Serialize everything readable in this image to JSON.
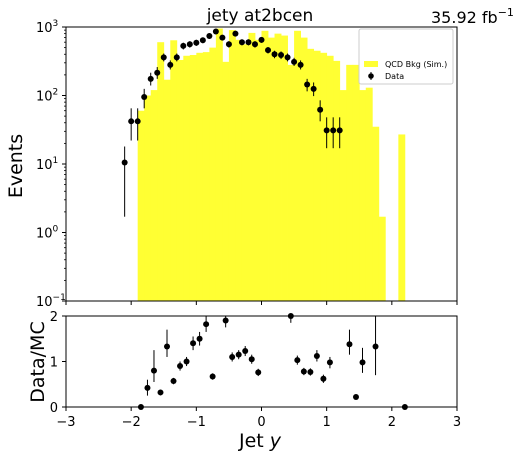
{
  "chart_data": [
    {
      "type": "bar",
      "title": "jety  at2bcen",
      "luminosity_label": "35.92 fb",
      "luminosity_exp": "−1",
      "ylabel": "Events",
      "yscale": "log",
      "xlim": [
        -3,
        3
      ],
      "ylim": [
        0.1,
        1000
      ],
      "ytick_labels": [
        "10",
        "10",
        "10",
        "10",
        "10"
      ],
      "ytick_exps": [
        "−1",
        "0",
        "1",
        "2",
        "3"
      ],
      "legend_placement": "top-right",
      "legend": [
        "QCD Bkg (Sim.)",
        "Data"
      ],
      "mc_hist": {
        "name": "QCD Bkg (Sim.)",
        "color": "#ffff33",
        "bins": [
          {
            "x0": -1.9,
            "x1": -1.8,
            "v": 60
          },
          {
            "x0": -1.8,
            "x1": -1.7,
            "v": 100
          },
          {
            "x0": -1.7,
            "x1": -1.6,
            "v": 120
          },
          {
            "x0": -1.6,
            "x1": -1.5,
            "v": 600
          },
          {
            "x0": -1.5,
            "x1": -1.4,
            "v": 170
          },
          {
            "x0": -1.4,
            "x1": -1.3,
            "v": 640
          },
          {
            "x0": -1.3,
            "x1": -1.2,
            "v": 330
          },
          {
            "x0": -1.2,
            "x1": -1.1,
            "v": 380
          },
          {
            "x0": -1.1,
            "x1": -1.0,
            "v": 390
          },
          {
            "x0": -1.0,
            "x1": -0.9,
            "v": 420
          },
          {
            "x0": -0.9,
            "x1": -0.8,
            "v": 430
          },
          {
            "x0": -0.8,
            "x1": -0.7,
            "v": 500
          },
          {
            "x0": -0.7,
            "x1": -0.6,
            "v": 950
          },
          {
            "x0": -0.6,
            "x1": -0.5,
            "v": 310
          },
          {
            "x0": -0.5,
            "x1": -0.4,
            "v": 900
          },
          {
            "x0": -0.4,
            "x1": -0.3,
            "v": 650
          },
          {
            "x0": -0.3,
            "x1": -0.2,
            "v": 560
          },
          {
            "x0": -0.2,
            "x1": -0.1,
            "v": 820
          },
          {
            "x0": -0.1,
            "x1": 0.0,
            "v": 650
          },
          {
            "x0": 0.0,
            "x1": 0.1,
            "v": 880
          },
          {
            "x0": 0.1,
            "x1": 0.2,
            "v": 700
          },
          {
            "x0": 0.2,
            "x1": 0.3,
            "v": 800
          },
          {
            "x0": 0.3,
            "x1": 0.4,
            "v": 750
          },
          {
            "x0": 0.4,
            "x1": 0.5,
            "v": 280
          },
          {
            "x0": 0.5,
            "x1": 0.6,
            "v": 880
          },
          {
            "x0": 0.6,
            "x1": 0.7,
            "v": 700
          },
          {
            "x0": 0.7,
            "x1": 0.8,
            "v": 480
          },
          {
            "x0": 0.8,
            "x1": 0.9,
            "v": 450
          },
          {
            "x0": 0.9,
            "x1": 1.0,
            "v": 420
          },
          {
            "x0": 1.0,
            "x1": 1.1,
            "v": 380
          },
          {
            "x0": 1.1,
            "x1": 1.2,
            "v": 320
          },
          {
            "x0": 1.2,
            "x1": 1.3,
            "v": 120
          },
          {
            "x0": 1.3,
            "x1": 1.4,
            "v": 280
          },
          {
            "x0": 1.4,
            "x1": 1.5,
            "v": 280
          },
          {
            "x0": 1.5,
            "x1": 1.6,
            "v": 120
          },
          {
            "x0": 1.6,
            "x1": 1.7,
            "v": 130
          },
          {
            "x0": 1.7,
            "x1": 1.8,
            "v": 35
          },
          {
            "x0": 1.8,
            "x1": 1.9,
            "v": 1.7
          },
          {
            "x0": 2.1,
            "x1": 2.2,
            "v": 27
          }
        ]
      },
      "data_points": {
        "name": "Data",
        "color": "#000000",
        "points": [
          {
            "x": -2.1,
            "y": 10.5,
            "lo": 1.7,
            "hi": 18
          },
          {
            "x": -2.0,
            "y": 42,
            "lo": 22,
            "hi": 65
          },
          {
            "x": -1.9,
            "y": 42,
            "lo": 22,
            "hi": 65
          },
          {
            "x": -1.8,
            "y": 95,
            "lo": 65,
            "hi": 125
          },
          {
            "x": -1.7,
            "y": 175,
            "lo": 140,
            "hi": 215
          },
          {
            "x": -1.6,
            "y": 215,
            "lo": 175,
            "hi": 260
          },
          {
            "x": -1.5,
            "y": 360,
            "lo": 315,
            "hi": 410
          },
          {
            "x": -1.4,
            "y": 280,
            "lo": 240,
            "hi": 325
          },
          {
            "x": -1.3,
            "y": 360,
            "lo": 315,
            "hi": 410
          },
          {
            "x": -1.2,
            "y": 530,
            "lo": 470,
            "hi": 590
          },
          {
            "x": -1.1,
            "y": 560,
            "lo": 500,
            "hi": 620
          },
          {
            "x": -1.0,
            "y": 590,
            "lo": 530,
            "hi": 650
          },
          {
            "x": -0.9,
            "y": 640,
            "lo": 580,
            "hi": 700
          },
          {
            "x": -0.8,
            "y": 740,
            "lo": 670,
            "hi": 810
          },
          {
            "x": -0.7,
            "y": 860,
            "lo": 790,
            "hi": 930
          },
          {
            "x": -0.6,
            "y": 700,
            "lo": 640,
            "hi": 760
          },
          {
            "x": -0.5,
            "y": 560,
            "lo": 500,
            "hi": 620
          },
          {
            "x": -0.4,
            "y": 800,
            "lo": 730,
            "hi": 870
          },
          {
            "x": -0.3,
            "y": 600,
            "lo": 540,
            "hi": 660
          },
          {
            "x": -0.2,
            "y": 600,
            "lo": 540,
            "hi": 660
          },
          {
            "x": -0.1,
            "y": 560,
            "lo": 500,
            "hi": 620
          },
          {
            "x": 0.0,
            "y": 650,
            "lo": 590,
            "hi": 710
          },
          {
            "x": 0.1,
            "y": 460,
            "lo": 410,
            "hi": 510
          },
          {
            "x": 0.2,
            "y": 400,
            "lo": 350,
            "hi": 450
          },
          {
            "x": 0.3,
            "y": 390,
            "lo": 340,
            "hi": 440
          },
          {
            "x": 0.4,
            "y": 360,
            "lo": 315,
            "hi": 410
          },
          {
            "x": 0.5,
            "y": 310,
            "lo": 270,
            "hi": 355
          },
          {
            "x": 0.6,
            "y": 280,
            "lo": 240,
            "hi": 325
          },
          {
            "x": 0.7,
            "y": 145,
            "lo": 115,
            "hi": 175
          },
          {
            "x": 0.8,
            "y": 125,
            "lo": 98,
            "hi": 155
          },
          {
            "x": 0.9,
            "y": 62,
            "lo": 42,
            "hi": 85
          },
          {
            "x": 1.0,
            "y": 31,
            "lo": 17,
            "hi": 48
          },
          {
            "x": 1.1,
            "y": 31,
            "lo": 17,
            "hi": 48
          },
          {
            "x": 1.2,
            "y": 31,
            "lo": 17,
            "hi": 48
          }
        ]
      }
    },
    {
      "type": "scatter",
      "ylabel": "Data/MC",
      "xlabel": "Jet ",
      "xlabel_italic": "y",
      "xlim": [
        -3,
        3
      ],
      "ylim": [
        0,
        2
      ],
      "xtick_labels": [
        "−3",
        "−2",
        "−1",
        "0",
        "1",
        "2",
        "3"
      ],
      "ytick_labels": [
        "0",
        "1",
        "2"
      ],
      "points": [
        {
          "x": -1.85,
          "y": 0.0,
          "lo": 0.0,
          "hi": 0.0
        },
        {
          "x": -1.75,
          "y": 0.42,
          "lo": 0.25,
          "hi": 0.6
        },
        {
          "x": -1.65,
          "y": 0.8,
          "lo": 0.55,
          "hi": 1.25
        },
        {
          "x": -1.55,
          "y": 0.32,
          "lo": 0.26,
          "hi": 0.38
        },
        {
          "x": -1.45,
          "y": 1.33,
          "lo": 1.1,
          "hi": 1.7
        },
        {
          "x": -1.35,
          "y": 0.57,
          "lo": 0.5,
          "hi": 0.64
        },
        {
          "x": -1.25,
          "y": 0.9,
          "lo": 0.8,
          "hi": 1.0
        },
        {
          "x": -1.15,
          "y": 1.0,
          "lo": 0.9,
          "hi": 1.1
        },
        {
          "x": -1.05,
          "y": 1.4,
          "lo": 1.25,
          "hi": 1.55
        },
        {
          "x": -0.95,
          "y": 1.5,
          "lo": 1.35,
          "hi": 1.65
        },
        {
          "x": -0.85,
          "y": 1.82,
          "lo": 1.65,
          "hi": 2.0
        },
        {
          "x": -0.75,
          "y": 0.67,
          "lo": 0.6,
          "hi": 0.74
        },
        {
          "x": -0.55,
          "y": 1.9,
          "lo": 1.75,
          "hi": 2.0
        },
        {
          "x": -0.45,
          "y": 1.1,
          "lo": 1.0,
          "hi": 1.2
        },
        {
          "x": -0.35,
          "y": 1.15,
          "lo": 1.05,
          "hi": 1.25
        },
        {
          "x": -0.25,
          "y": 1.23,
          "lo": 1.12,
          "hi": 1.34
        },
        {
          "x": -0.15,
          "y": 1.05,
          "lo": 0.95,
          "hi": 1.15
        },
        {
          "x": -0.05,
          "y": 0.76,
          "lo": 0.68,
          "hi": 0.84
        },
        {
          "x": 0.45,
          "y": 2.0,
          "lo": 1.85,
          "hi": 2.0
        },
        {
          "x": 0.55,
          "y": 1.03,
          "lo": 0.93,
          "hi": 1.13
        },
        {
          "x": 0.65,
          "y": 0.78,
          "lo": 0.7,
          "hi": 0.86
        },
        {
          "x": 0.75,
          "y": 0.77,
          "lo": 0.69,
          "hi": 0.85
        },
        {
          "x": 0.85,
          "y": 1.12,
          "lo": 1.0,
          "hi": 1.25
        },
        {
          "x": 0.95,
          "y": 0.62,
          "lo": 0.53,
          "hi": 0.71
        },
        {
          "x": 1.05,
          "y": 0.98,
          "lo": 0.85,
          "hi": 1.1
        },
        {
          "x": 1.35,
          "y": 1.38,
          "lo": 1.15,
          "hi": 1.7
        },
        {
          "x": 1.45,
          "y": 0.22,
          "lo": 0.18,
          "hi": 0.26
        },
        {
          "x": 1.55,
          "y": 0.98,
          "lo": 0.75,
          "hi": 1.3
        },
        {
          "x": 1.75,
          "y": 1.33,
          "lo": 0.7,
          "hi": 2.0
        },
        {
          "x": 2.2,
          "y": 0.0,
          "lo": 0.0,
          "hi": 0.0
        }
      ]
    }
  ]
}
